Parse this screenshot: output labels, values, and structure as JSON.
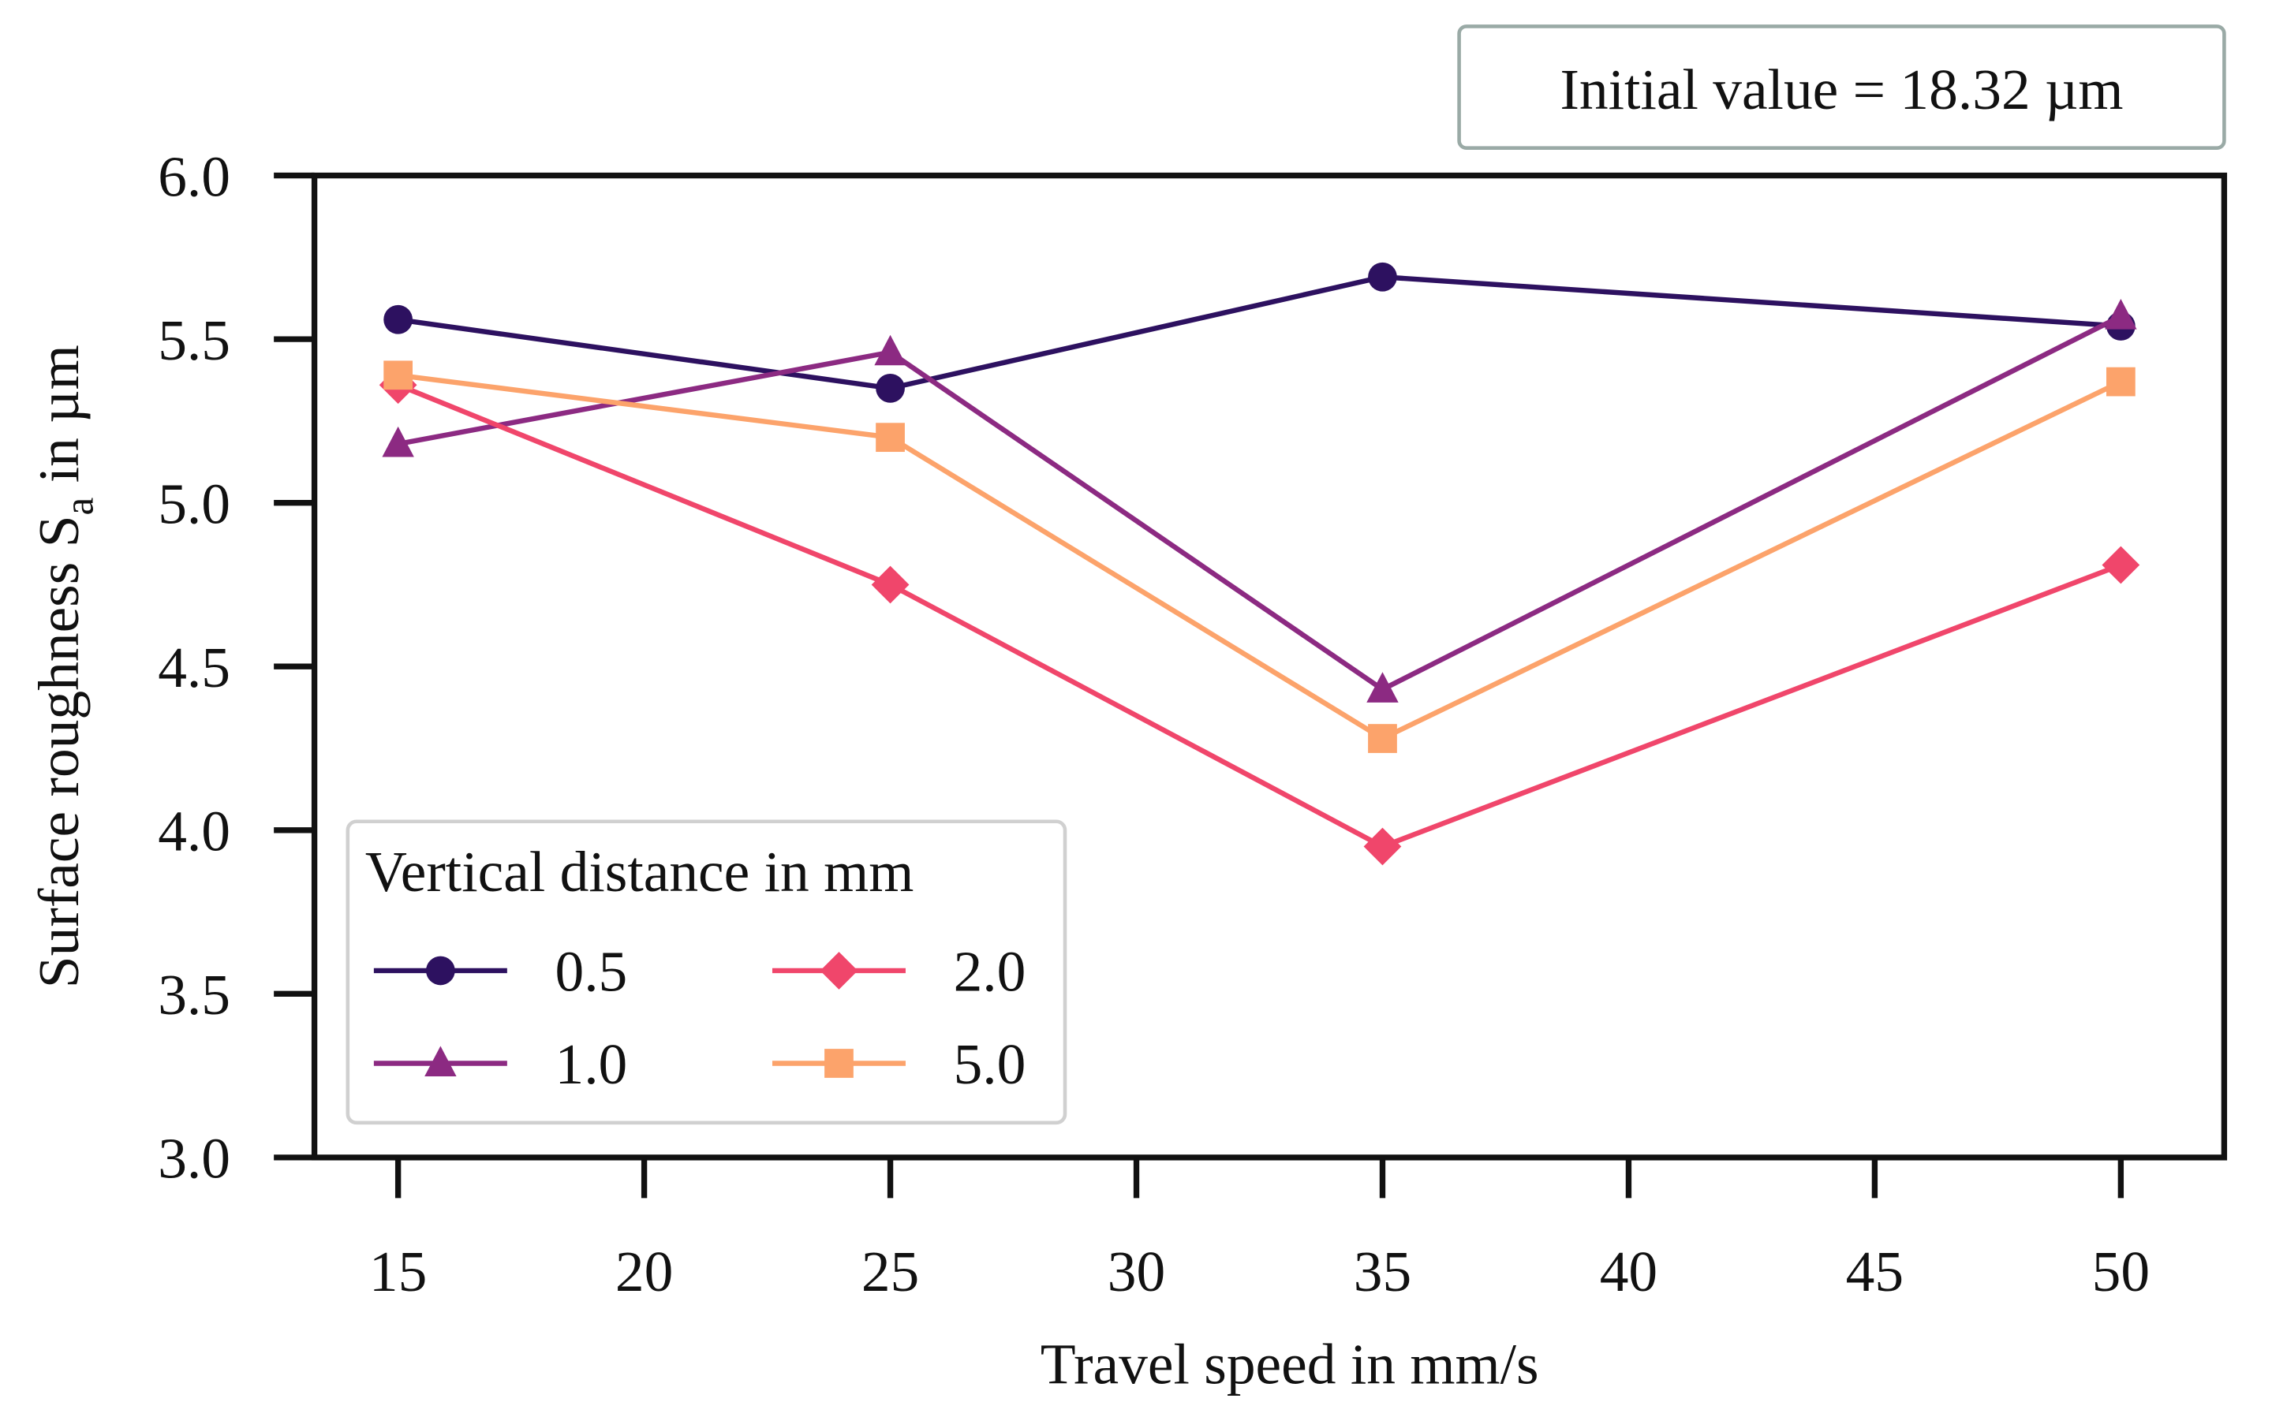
{
  "chart_data": {
    "type": "line",
    "title": "",
    "xlabel": "Travel speed in mm/s",
    "ylabel_main": "Surface roughness S",
    "ylabel_sub": "a",
    "ylabel_tail": " in µm",
    "xlim": [
      13.3,
      52.1
    ],
    "ylim": [
      3.0,
      6.0
    ],
    "xticks": [
      15,
      20,
      25,
      30,
      35,
      40,
      45,
      50
    ],
    "yticks": [
      "3.0",
      "3.5",
      "4.0",
      "4.5",
      "5.0",
      "5.5",
      "6.0"
    ],
    "x": [
      15,
      25,
      35,
      50
    ],
    "legend_title": "Vertical distance in mm",
    "legend_position": "lower-left",
    "annotation": "Initial value = 18.32 µm",
    "series": [
      {
        "name": "0.5",
        "color": "#2d1160",
        "marker": "circle",
        "values": [
          5.56,
          5.35,
          5.69,
          5.54
        ]
      },
      {
        "name": "1.0",
        "color": "#8c2a82",
        "marker": "triangle",
        "values": [
          5.18,
          5.46,
          4.43,
          5.57
        ]
      },
      {
        "name": "2.0",
        "color": "#f0466b",
        "marker": "diamond",
        "values": [
          5.36,
          4.75,
          3.95,
          4.81
        ]
      },
      {
        "name": "5.0",
        "color": "#fca36b",
        "marker": "square",
        "values": [
          5.39,
          5.2,
          4.28,
          5.37
        ]
      }
    ]
  }
}
